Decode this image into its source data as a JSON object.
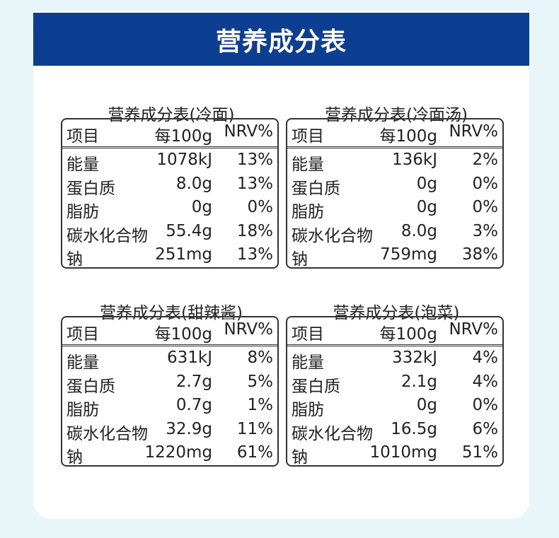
{
  "header": {
    "title": "营养成分表"
  },
  "tables": [
    {
      "title": "营养成分表(冷面)",
      "columns": [
        "项目",
        "每100g",
        "NRV%"
      ],
      "rows": [
        [
          "能量",
          "1078kJ",
          "13%"
        ],
        [
          "蛋白质",
          "8.0g",
          "13%"
        ],
        [
          "脂肪",
          "0g",
          "0%"
        ],
        [
          "碳水化合物",
          "55.4g",
          "18%"
        ],
        [
          "钠",
          "251mg",
          "13%"
        ]
      ]
    },
    {
      "title": "营养成分表(冷面汤)",
      "columns": [
        "项目",
        "每100g",
        "NRV%"
      ],
      "rows": [
        [
          "能量",
          "136kJ",
          "2%"
        ],
        [
          "蛋白质",
          "0g",
          "0%"
        ],
        [
          "脂肪",
          "0g",
          "0%"
        ],
        [
          "碳水化合物",
          "8.0g",
          "3%"
        ],
        [
          "钠",
          "759mg",
          "38%"
        ]
      ]
    },
    {
      "title": "营养成分表(甜辣酱)",
      "columns": [
        "项目",
        "每100g",
        "NRV%"
      ],
      "rows": [
        [
          "能量",
          "631kJ",
          "8%"
        ],
        [
          "蛋白质",
          "2.7g",
          "5%"
        ],
        [
          "脂肪",
          "0.7g",
          "1%"
        ],
        [
          "碳水化合物",
          "32.9g",
          "11%"
        ],
        [
          "钠",
          "1220mg",
          "61%"
        ]
      ]
    },
    {
      "title": "营养成分表(泡菜)",
      "columns": [
        "项目",
        "每100g",
        "NRV%"
      ],
      "rows": [
        [
          "能量",
          "332kJ",
          "4%"
        ],
        [
          "蛋白质",
          "2.1g",
          "4%"
        ],
        [
          "脂肪",
          "0g",
          "0%"
        ],
        [
          "碳水化合物",
          "16.5g",
          "6%"
        ],
        [
          "钠",
          "1010mg",
          "51%"
        ]
      ]
    }
  ]
}
